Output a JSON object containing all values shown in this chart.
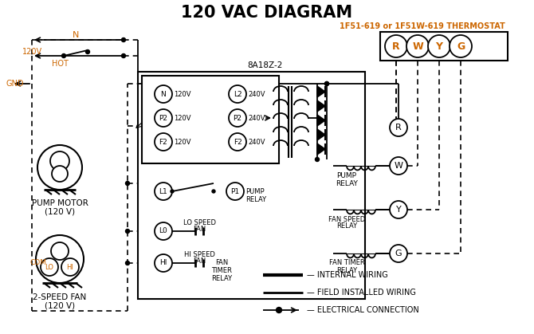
{
  "title": "120 VAC DIAGRAM",
  "bg_color": "#ffffff",
  "orange_color": "#cc6600",
  "thermostat_label": "1F51-619 or 1F51W-619 THERMOSTAT",
  "box_label": "8A18Z-2"
}
